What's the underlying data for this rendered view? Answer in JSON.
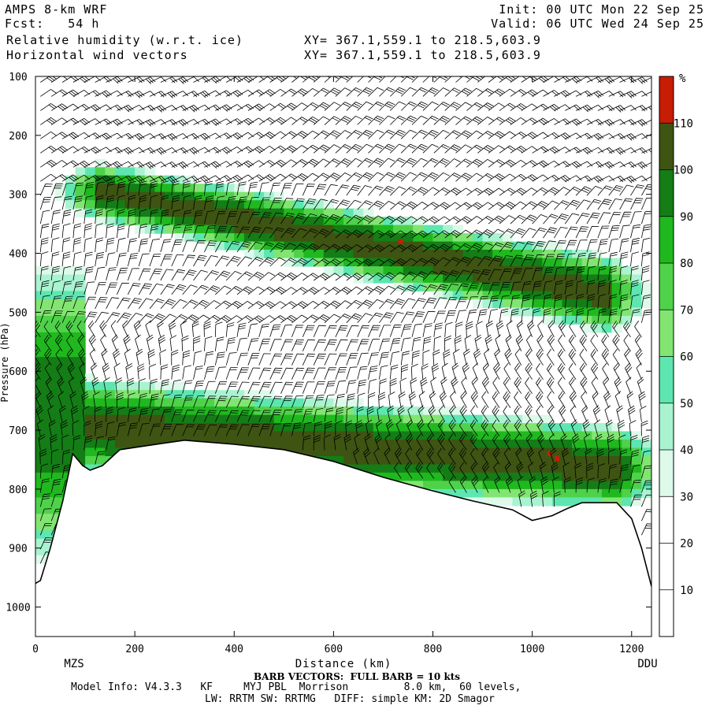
{
  "header": {
    "model": "AMPS 8-km WRF",
    "fcst": "Fcst:   54 h",
    "field1": "Relative humidity (w.r.t. ice)",
    "field2": "Horizontal wind vectors",
    "xy1": "XY= 367.1,559.1 to 218.5,603.9",
    "xy2": "XY= 367.1,559.1 to 218.5,603.9",
    "init": "Init: 00 UTC Mon 22 Sep 25",
    "valid": "Valid: 06 UTC Wed 24 Sep 25"
  },
  "footer": {
    "barb_note": "BARB VECTORS:  FULL BARB = 10 kts",
    "model_info": "Model Info: V4.3.3   KF     MYJ PBL  Morrison         8.0 km,  60 levels,",
    "physics": "LW: RRTM SW: RRTMG   DIFF: simple KM: 2D Smagor"
  },
  "chart_data": {
    "type": "heatmap",
    "title": "Relative humidity (w.r.t. ice) with horizontal wind vectors",
    "xlabel": "Distance (km)",
    "ylabel": "Pressure (hPa)",
    "xlim": [
      0,
      1240
    ],
    "ylim": [
      1050,
      100
    ],
    "x_ticks": [
      0,
      200,
      400,
      600,
      800,
      1000,
      1200
    ],
    "y_ticks": [
      100,
      200,
      300,
      400,
      500,
      600,
      700,
      800,
      900,
      1000
    ],
    "x_endpoints": {
      "left": "MZS",
      "right": "DDU"
    },
    "colorbar": {
      "unit": "%",
      "ticks": [
        10,
        20,
        30,
        40,
        50,
        60,
        70,
        80,
        90,
        100,
        110
      ],
      "bins": [
        {
          "min": 0,
          "max": 30,
          "color": "#ffffff"
        },
        {
          "min": 30,
          "max": 40,
          "color": "#ddf9ea"
        },
        {
          "min": 40,
          "max": 50,
          "color": "#a9f3d1"
        },
        {
          "min": 50,
          "max": 60,
          "color": "#5ee6b0"
        },
        {
          "min": 60,
          "max": 70,
          "color": "#82e572"
        },
        {
          "min": 70,
          "max": 80,
          "color": "#4fd24a"
        },
        {
          "min": 80,
          "max": 90,
          "color": "#20b81f"
        },
        {
          "min": 90,
          "max": 100,
          "color": "#147d16"
        },
        {
          "min": 100,
          "max": 110,
          "color": "#3e5412"
        },
        {
          "min": 110,
          "max": 120,
          "color": "#c81d05"
        }
      ]
    },
    "moist_layers": [
      {
        "name": "upper moist layer",
        "x_start": 130,
        "x_end": 1150,
        "p_top_start": 250,
        "p_bot_start": 340,
        "p_top_end": 410,
        "p_bot_end": 530,
        "peak_rh": 105
      },
      {
        "name": "lower moist layer",
        "x_start": 110,
        "x_end": 1180,
        "p_top_start": 620,
        "p_bot_start": 770,
        "p_top_end": 700,
        "p_bot_end": 830,
        "peak_rh": 105
      },
      {
        "name": "coastal moist column",
        "x_start": 0,
        "x_end": 90,
        "p_top_start": 450,
        "p_bot_start": 900,
        "p_top_end": 450,
        "p_bot_end": 900,
        "peak_rh": 100
      }
    ],
    "supersaturated_spots": [
      {
        "x": 735,
        "p": 380,
        "rh": 112
      },
      {
        "x": 1035,
        "p": 740,
        "rh": 112
      },
      {
        "x": 1050,
        "p": 748,
        "rh": 112
      }
    ],
    "terrain_surface": [
      {
        "x": 0,
        "p": 960
      },
      {
        "x": 10,
        "p": 955
      },
      {
        "x": 30,
        "p": 900
      },
      {
        "x": 55,
        "p": 820
      },
      {
        "x": 75,
        "p": 740
      },
      {
        "x": 95,
        "p": 760
      },
      {
        "x": 110,
        "p": 768
      },
      {
        "x": 135,
        "p": 760
      },
      {
        "x": 170,
        "p": 733
      },
      {
        "x": 250,
        "p": 723
      },
      {
        "x": 300,
        "p": 717
      },
      {
        "x": 400,
        "p": 724
      },
      {
        "x": 500,
        "p": 733
      },
      {
        "x": 600,
        "p": 753
      },
      {
        "x": 700,
        "p": 780
      },
      {
        "x": 800,
        "p": 803
      },
      {
        "x": 880,
        "p": 820
      },
      {
        "x": 960,
        "p": 835
      },
      {
        "x": 1000,
        "p": 853
      },
      {
        "x": 1040,
        "p": 845
      },
      {
        "x": 1070,
        "p": 833
      },
      {
        "x": 1100,
        "p": 823
      },
      {
        "x": 1170,
        "p": 823
      },
      {
        "x": 1200,
        "p": 850
      },
      {
        "x": 1220,
        "p": 900
      },
      {
        "x": 1240,
        "p": 965
      }
    ]
  }
}
